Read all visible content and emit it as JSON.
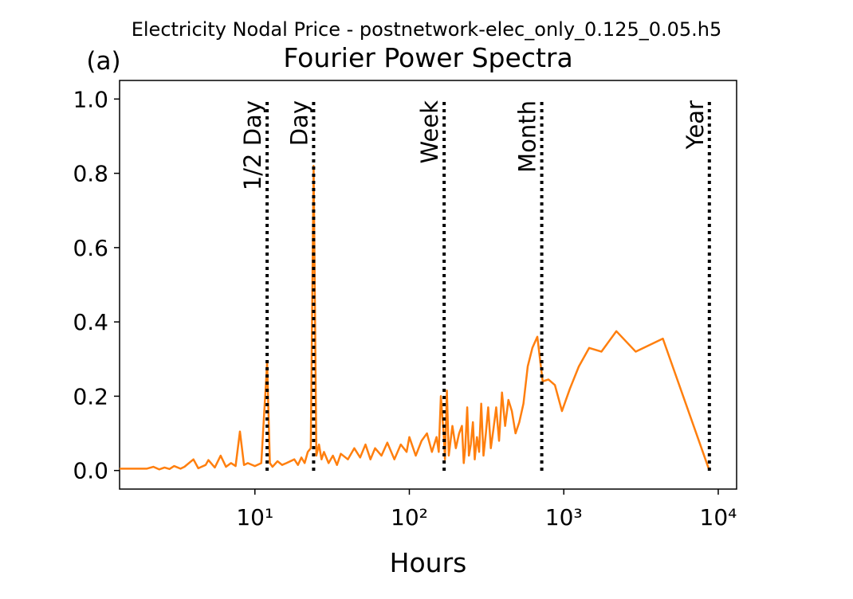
{
  "chart_data": {
    "type": "line",
    "title": "Electricity Nodal Price - postnetwork-elec_only_0.125_0.05.h5",
    "subtitle": "Fourier Power Spectra",
    "panel_label": "(a)",
    "x_label": "Hours",
    "x_scale": "log",
    "xlim": [
      1.33,
      13150
    ],
    "ylim": [
      -0.05,
      1.05
    ],
    "xticks": [
      {
        "value": 10,
        "label": "10¹"
      },
      {
        "value": 100,
        "label": "10²"
      },
      {
        "value": 1000,
        "label": "10³"
      },
      {
        "value": 10000,
        "label": "10⁴"
      }
    ],
    "yticks": [
      {
        "value": 0,
        "label": "0.0"
      },
      {
        "value": 0.2,
        "label": "0.2"
      },
      {
        "value": 0.4,
        "label": "0.4"
      },
      {
        "value": 0.6,
        "label": "0.6"
      },
      {
        "value": 0.8,
        "label": "0.8"
      },
      {
        "value": 1,
        "label": "1.0"
      }
    ],
    "reference_lines": [
      {
        "x": 12,
        "label": "1/2 Day"
      },
      {
        "x": 24,
        "label": "Day"
      },
      {
        "x": 168,
        "label": "Week"
      },
      {
        "x": 720,
        "label": "Month"
      },
      {
        "x": 8760,
        "label": "Year"
      }
    ],
    "series": [
      {
        "color": "#ff7f0e",
        "x": [
          1.33,
          2,
          2.2,
          2.4,
          2.6,
          2.8,
          3,
          3.3,
          3.5,
          4,
          4.3,
          4.8,
          5,
          5.5,
          6,
          6.5,
          7,
          7.5,
          8,
          8.5,
          9,
          10,
          11,
          12,
          12.5,
          13,
          14,
          15,
          16,
          18,
          19,
          20,
          21,
          22,
          23,
          24,
          25,
          26,
          27,
          28,
          30,
          32,
          34,
          36,
          40,
          44,
          48,
          52,
          56,
          60,
          66,
          72,
          80,
          88,
          96,
          100,
          110,
          120,
          130,
          140,
          150,
          155,
          160,
          168,
          170,
          175,
          180,
          190,
          200,
          210,
          219,
          225,
          230,
          237,
          243,
          250,
          258,
          265,
          274,
          283,
          292,
          302,
          313,
          324,
          337,
          350,
          365,
          381,
          398,
          417,
          438,
          461,
          487,
          515,
          548,
          584,
          626,
          674,
          730,
          796,
          876,
          973,
          1095,
          1251,
          1460,
          1752,
          2190,
          2920,
          4380,
          8760
        ],
        "values": [
          0.005,
          0.005,
          0.01,
          0.003,
          0.008,
          0.004,
          0.012,
          0.005,
          0.01,
          0.03,
          0.006,
          0.015,
          0.028,
          0.008,
          0.04,
          0.01,
          0.02,
          0.012,
          0.105,
          0.015,
          0.02,
          0.012,
          0.02,
          0.29,
          0.02,
          0.01,
          0.025,
          0.015,
          0.02,
          0.03,
          0.015,
          0.035,
          0.02,
          0.05,
          0.06,
          0.82,
          0.04,
          0.07,
          0.03,
          0.05,
          0.02,
          0.04,
          0.015,
          0.045,
          0.03,
          0.06,
          0.035,
          0.07,
          0.03,
          0.06,
          0.04,
          0.075,
          0.03,
          0.07,
          0.05,
          0.09,
          0.04,
          0.08,
          0.1,
          0.05,
          0.09,
          0.05,
          0.2,
          0.08,
          0.03,
          0.215,
          0.04,
          0.12,
          0.06,
          0.1,
          0.12,
          0.02,
          0.06,
          0.17,
          0.04,
          0.07,
          0.13,
          0.03,
          0.09,
          0.05,
          0.18,
          0.04,
          0.1,
          0.17,
          0.06,
          0.11,
          0.17,
          0.08,
          0.21,
          0.12,
          0.19,
          0.16,
          0.1,
          0.13,
          0.18,
          0.28,
          0.33,
          0.36,
          0.24,
          0.245,
          0.23,
          0.16,
          0.22,
          0.28,
          0.33,
          0.32,
          0.375,
          0.32,
          0.355,
          0
        ]
      }
    ]
  }
}
